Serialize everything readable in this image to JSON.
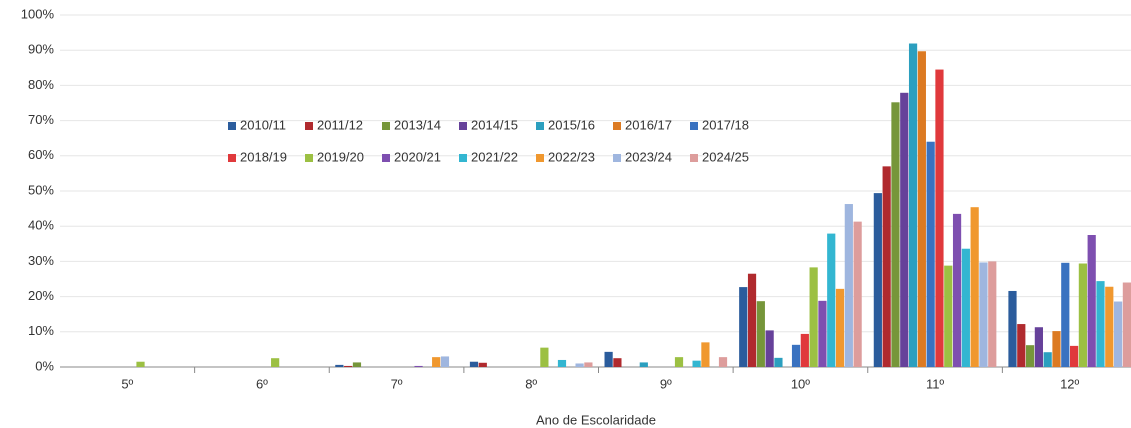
{
  "chart_data": {
    "type": "bar",
    "x_label": "Ano de Escolaridade",
    "categories": [
      "5º",
      "6º",
      "7º",
      "8º",
      "9º",
      "10º",
      "11º",
      "12º"
    ],
    "ylim": [
      0,
      100
    ],
    "yticks": [
      {
        "value": 0,
        "label": "0%"
      },
      {
        "value": 10,
        "label": "10%"
      },
      {
        "value": 20,
        "label": "20%"
      },
      {
        "value": 30,
        "label": "30%"
      },
      {
        "value": 40,
        "label": "40%"
      },
      {
        "value": 50,
        "label": "50%"
      },
      {
        "value": 60,
        "label": "60%"
      },
      {
        "value": 70,
        "label": "70%"
      },
      {
        "value": 80,
        "label": "80%"
      },
      {
        "value": 90,
        "label": "90%"
      },
      {
        "value": 100,
        "label": "100%"
      }
    ],
    "grid": true,
    "series": [
      {
        "name": "2010/11",
        "color": "#2b5c9c",
        "values": [
          0,
          0,
          0.6,
          1.5,
          4.3,
          22.7,
          49.4,
          21.6
        ]
      },
      {
        "name": "2011/12",
        "color": "#b02a2e",
        "values": [
          0,
          0,
          0.3,
          1.2,
          2.5,
          26.5,
          57.0,
          12.2
        ]
      },
      {
        "name": "2013/14",
        "color": "#76963a",
        "values": [
          0,
          0,
          1.3,
          0,
          0,
          18.7,
          75.2,
          6.2
        ]
      },
      {
        "name": "2014/15",
        "color": "#66419a",
        "values": [
          0,
          0,
          0,
          0,
          0,
          10.4,
          77.9,
          11.3
        ]
      },
      {
        "name": "2015/16",
        "color": "#2b9fbf",
        "values": [
          0,
          0,
          0,
          0,
          1.3,
          2.6,
          91.9,
          4.2
        ]
      },
      {
        "name": "2016/17",
        "color": "#dc7a22",
        "values": [
          0,
          0,
          0,
          0,
          0,
          0,
          89.7,
          10.2
        ]
      },
      {
        "name": "2017/18",
        "color": "#3a72c0",
        "values": [
          0,
          0,
          0,
          0,
          0,
          6.3,
          64.0,
          29.6
        ]
      },
      {
        "name": "2018/19",
        "color": "#e0393c",
        "values": [
          0,
          0,
          0,
          0,
          0,
          9.4,
          84.5,
          6.0
        ]
      },
      {
        "name": "2019/20",
        "color": "#9cc043",
        "values": [
          1.5,
          2.5,
          0,
          5.5,
          2.8,
          28.3,
          28.8,
          29.4
        ]
      },
      {
        "name": "2020/21",
        "color": "#7e4fb0",
        "values": [
          0,
          0,
          0.3,
          0,
          0,
          18.8,
          43.5,
          37.5
        ]
      },
      {
        "name": "2021/22",
        "color": "#33b6d1",
        "values": [
          0,
          0,
          0,
          2.0,
          1.8,
          37.9,
          33.6,
          24.4
        ]
      },
      {
        "name": "2022/23",
        "color": "#f0982f",
        "values": [
          0,
          0,
          2.8,
          0,
          7.0,
          22.2,
          45.4,
          22.8
        ]
      },
      {
        "name": "2023/24",
        "color": "#9fb6df",
        "values": [
          0,
          0,
          3.0,
          1.0,
          0,
          46.3,
          29.7,
          18.6
        ]
      },
      {
        "name": "2024/25",
        "color": "#dd9d9c",
        "values": [
          0,
          0,
          0,
          1.3,
          2.8,
          41.3,
          30.0,
          24.0
        ]
      }
    ]
  }
}
